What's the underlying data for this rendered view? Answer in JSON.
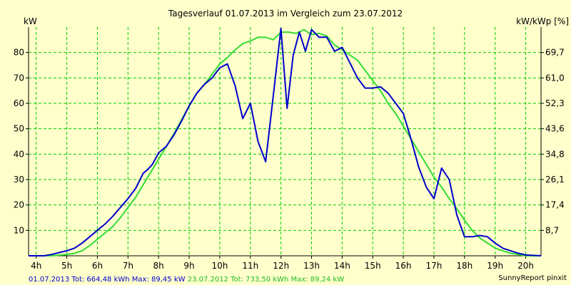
{
  "colors": {
    "background": "#ffffcc",
    "grid": "#00cc00",
    "series_2013": "#0000cc",
    "series_2012": "#33dd33",
    "axis": "#000000"
  },
  "footer": {
    "s1": "01.07.2013 Tot: 664,48 kWh Max: 89,45 kW",
    "s2": "23.07.2012 Tot: 733,50 kWh Max: 89,24 kW",
    "credit": "SunnyReport pinxit"
  },
  "chart_data": {
    "type": "line",
    "title": "Tagesverlauf 01.07.2013 im Vergleich zum 23.07.2012",
    "ylabel": "kW",
    "y2label": "kW/kWp [%]",
    "xlim": [
      3.75,
      20.5
    ],
    "ylim": [
      0,
      90
    ],
    "grid": true,
    "x_ticks": [
      {
        "x": 4,
        "label": "4h"
      },
      {
        "x": 5,
        "label": "5h"
      },
      {
        "x": 6,
        "label": "6h"
      },
      {
        "x": 7,
        "label": "7h"
      },
      {
        "x": 8,
        "label": "8h"
      },
      {
        "x": 9,
        "label": "9h"
      },
      {
        "x": 10,
        "label": "10h"
      },
      {
        "x": 11,
        "label": "11h"
      },
      {
        "x": 12,
        "label": "12h"
      },
      {
        "x": 13,
        "label": "13h"
      },
      {
        "x": 14,
        "label": "14h"
      },
      {
        "x": 15,
        "label": "15h"
      },
      {
        "x": 16,
        "label": "16h"
      },
      {
        "x": 17,
        "label": "17h"
      },
      {
        "x": 18,
        "label": "18h"
      },
      {
        "x": 19,
        "label": "19h"
      },
      {
        "x": 20,
        "label": "20h"
      }
    ],
    "y_ticks": [
      10,
      20,
      30,
      40,
      50,
      60,
      70,
      80
    ],
    "y2_ticks": [
      {
        "y": 10,
        "label": "8,7"
      },
      {
        "y": 20,
        "label": "17,4"
      },
      {
        "y": 30,
        "label": "26,1"
      },
      {
        "y": 40,
        "label": "34,8"
      },
      {
        "y": 50,
        "label": "43,6"
      },
      {
        "y": 60,
        "label": "52,3"
      },
      {
        "y": 70,
        "label": "61,0"
      },
      {
        "y": 80,
        "label": "69,7"
      }
    ],
    "series": [
      {
        "name": "01.07.2013",
        "color": "#0000cc",
        "points": [
          [
            3.75,
            0
          ],
          [
            4.25,
            0
          ],
          [
            4.5,
            0.5
          ],
          [
            5,
            2
          ],
          [
            5.25,
            3
          ],
          [
            5.5,
            5
          ],
          [
            5.75,
            7.5
          ],
          [
            6,
            10
          ],
          [
            6.25,
            12.5
          ],
          [
            6.5,
            15.5
          ],
          [
            6.75,
            19
          ],
          [
            7,
            22.5
          ],
          [
            7.25,
            26.5
          ],
          [
            7.5,
            32.5
          ],
          [
            7.65,
            34
          ],
          [
            7.8,
            36
          ],
          [
            8,
            40.5
          ],
          [
            8.25,
            43
          ],
          [
            8.5,
            47.5
          ],
          [
            8.75,
            53
          ],
          [
            9,
            59
          ],
          [
            9.25,
            64
          ],
          [
            9.5,
            67.5
          ],
          [
            9.75,
            70
          ],
          [
            10,
            74
          ],
          [
            10.25,
            75.5
          ],
          [
            10.5,
            67
          ],
          [
            10.75,
            54
          ],
          [
            11,
            60
          ],
          [
            11.25,
            45
          ],
          [
            11.5,
            37
          ],
          [
            11.75,
            63
          ],
          [
            12,
            89.5
          ],
          [
            12.2,
            58
          ],
          [
            12.4,
            79
          ],
          [
            12.6,
            88
          ],
          [
            12.8,
            80.5
          ],
          [
            13,
            89
          ],
          [
            13.25,
            86
          ],
          [
            13.5,
            86
          ],
          [
            13.75,
            80.5
          ],
          [
            14,
            82
          ],
          [
            14.25,
            76
          ],
          [
            14.5,
            70
          ],
          [
            14.75,
            66
          ],
          [
            15,
            66
          ],
          [
            15.25,
            66.5
          ],
          [
            15.5,
            64
          ],
          [
            15.75,
            60
          ],
          [
            16,
            56
          ],
          [
            16.25,
            46
          ],
          [
            16.5,
            35
          ],
          [
            16.75,
            27
          ],
          [
            17,
            22.5
          ],
          [
            17.25,
            34.5
          ],
          [
            17.5,
            30
          ],
          [
            17.75,
            16
          ],
          [
            18,
            7.5
          ],
          [
            18.25,
            7.5
          ],
          [
            18.5,
            8
          ],
          [
            18.75,
            7.5
          ],
          [
            19,
            5
          ],
          [
            19.25,
            3
          ],
          [
            19.5,
            2
          ],
          [
            19.75,
            1
          ],
          [
            20,
            0.3
          ],
          [
            20.5,
            0
          ]
        ]
      },
      {
        "name": "23.07.2012",
        "color": "#33dd33",
        "points": [
          [
            3.75,
            0
          ],
          [
            4.5,
            0
          ],
          [
            5,
            0.5
          ],
          [
            5.25,
            1
          ],
          [
            5.5,
            2
          ],
          [
            5.75,
            4
          ],
          [
            6,
            6.5
          ],
          [
            6.25,
            9
          ],
          [
            6.5,
            11.5
          ],
          [
            6.75,
            15
          ],
          [
            7,
            19
          ],
          [
            7.25,
            23
          ],
          [
            7.5,
            28
          ],
          [
            7.75,
            33
          ],
          [
            8,
            38
          ],
          [
            8.25,
            43
          ],
          [
            8.5,
            48
          ],
          [
            8.75,
            53.5
          ],
          [
            9,
            59
          ],
          [
            9.25,
            64
          ],
          [
            9.5,
            67.5
          ],
          [
            9.75,
            71.5
          ],
          [
            10,
            75.5
          ],
          [
            10.25,
            78
          ],
          [
            10.5,
            81
          ],
          [
            10.75,
            83.5
          ],
          [
            11,
            84.5
          ],
          [
            11.25,
            86
          ],
          [
            11.5,
            86
          ],
          [
            11.75,
            85
          ],
          [
            12,
            88
          ],
          [
            12.25,
            88
          ],
          [
            12.5,
            87.5
          ],
          [
            12.75,
            89
          ],
          [
            13,
            87
          ],
          [
            13.25,
            87.5
          ],
          [
            13.5,
            86.5
          ],
          [
            13.75,
            83
          ],
          [
            14,
            81
          ],
          [
            14.25,
            79
          ],
          [
            14.5,
            77
          ],
          [
            14.75,
            73
          ],
          [
            15,
            69
          ],
          [
            15.25,
            65
          ],
          [
            15.5,
            60
          ],
          [
            15.75,
            56
          ],
          [
            16,
            51
          ],
          [
            16.25,
            46
          ],
          [
            16.5,
            41
          ],
          [
            16.75,
            36
          ],
          [
            17,
            31
          ],
          [
            17.25,
            27
          ],
          [
            17.5,
            22.5
          ],
          [
            17.75,
            18.5
          ],
          [
            18,
            14
          ],
          [
            18.25,
            10
          ],
          [
            18.5,
            7
          ],
          [
            18.75,
            5
          ],
          [
            19,
            3
          ],
          [
            19.25,
            2
          ],
          [
            19.5,
            1
          ],
          [
            19.75,
            0.5
          ],
          [
            20,
            0
          ],
          [
            20.5,
            0
          ]
        ]
      }
    ]
  }
}
